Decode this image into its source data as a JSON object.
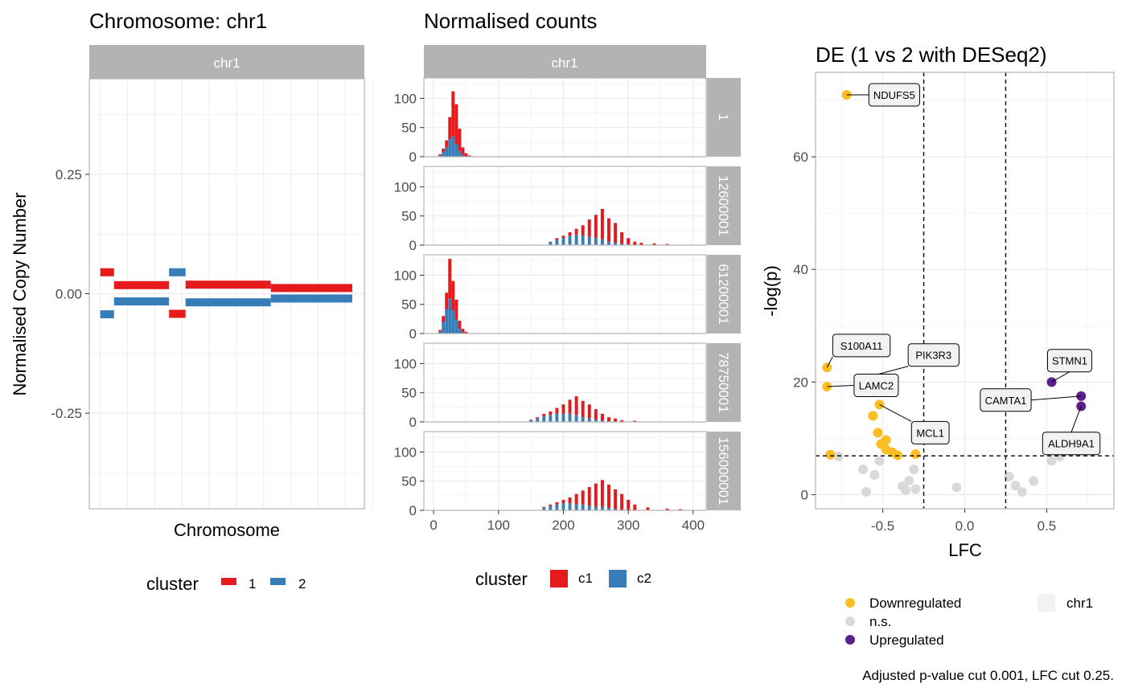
{
  "colors": {
    "cluster1": "#E41A1C",
    "cluster2": "#377EB8",
    "down": "#FBBD22",
    "ns": "#D9D9D9",
    "up": "#5B1E8A",
    "strip": "#B3B3B3",
    "grid": "#EBEBEB",
    "panel_border": "#B3B3B3"
  },
  "chart_data": [
    {
      "type": "segments",
      "title": "Chromosome: chr1",
      "facet_strip": "chr1",
      "xlabel": "Chromosome",
      "ylabel": "Normalised Copy Number",
      "ylim": [
        -0.45,
        0.45
      ],
      "y_ticks": [
        0.25,
        0.0,
        -0.25
      ],
      "y_tick_labels": [
        "0.25",
        "0.00",
        "-0.25"
      ],
      "xlim": [
        0,
        100
      ],
      "grid": true,
      "legend": {
        "title": "cluster",
        "position": "bottom",
        "entries": [
          "1",
          "2"
        ]
      },
      "series": [
        {
          "name": "1",
          "segments": [
            [
              4,
              9,
              0.045
            ],
            [
              9,
              29,
              0.018
            ],
            [
              29,
              35,
              -0.042
            ],
            [
              35,
              66,
              0.019
            ],
            [
              66,
              105,
              0.012
            ]
          ]
        },
        {
          "name": "2",
          "segments": [
            [
              4,
              9,
              -0.043
            ],
            [
              9,
              29,
              -0.016
            ],
            [
              29,
              35,
              0.045
            ],
            [
              35,
              66,
              -0.018
            ],
            [
              66,
              105,
              -0.01
            ]
          ]
        }
      ]
    },
    {
      "type": "bar",
      "subtype": "stacked-histogram-facets",
      "title": "Normalised counts",
      "facet_col_strip": "chr1",
      "xlim": [
        -15,
        420
      ],
      "x_ticks": [
        0,
        100,
        200,
        300,
        400
      ],
      "x_tick_labels": [
        "0",
        "100",
        "200",
        "300",
        "400"
      ],
      "ylim": [
        0,
        135
      ],
      "y_ticks": [
        0,
        50,
        100
      ],
      "y_tick_labels": [
        "0",
        "50",
        "100"
      ],
      "grid": true,
      "legend": {
        "title": "cluster",
        "position": "bottom",
        "entries": [
          "c1",
          "c2"
        ]
      },
      "facets": [
        {
          "strip": "1",
          "peak_x": 30,
          "peak_sd": 8,
          "count_total": 620,
          "c2_share": 0.35,
          "bars": [
            [
              10,
              4,
              2
            ],
            [
              15,
              14,
              9
            ],
            [
              20,
              28,
              16
            ],
            [
              25,
              68,
              30
            ],
            [
              30,
              112,
              35
            ],
            [
              35,
              90,
              22
            ],
            [
              40,
              48,
              10
            ],
            [
              45,
              16,
              3
            ],
            [
              50,
              6,
              0
            ],
            [
              55,
              2,
              0
            ]
          ]
        },
        {
          "strip": "12600001",
          "peak_x": 255,
          "peak_sd": 30,
          "count_total": 1000,
          "c2_share": 0.3,
          "bars": [
            [
              180,
              6,
              5
            ],
            [
              190,
              12,
              9
            ],
            [
              200,
              16,
              12
            ],
            [
              210,
              22,
              16
            ],
            [
              220,
              28,
              18
            ],
            [
              230,
              34,
              16
            ],
            [
              240,
              44,
              14
            ],
            [
              250,
              52,
              12
            ],
            [
              260,
              62,
              10
            ],
            [
              270,
              46,
              6
            ],
            [
              280,
              38,
              4
            ],
            [
              290,
              22,
              2
            ],
            [
              300,
              12,
              1
            ],
            [
              310,
              6,
              0
            ],
            [
              320,
              4,
              0
            ],
            [
              340,
              3,
              0
            ],
            [
              360,
              2,
              0
            ]
          ]
        },
        {
          "strip": "61200001",
          "peak_x": 24,
          "peak_sd": 7,
          "count_total": 560,
          "c2_share": 0.45,
          "bars": [
            [
              10,
              6,
              3
            ],
            [
              15,
              30,
              20
            ],
            [
              20,
              70,
              42
            ],
            [
              25,
              128,
              60
            ],
            [
              30,
              90,
              40
            ],
            [
              35,
              58,
              24
            ],
            [
              40,
              22,
              8
            ],
            [
              45,
              8,
              2
            ],
            [
              50,
              3,
              0
            ]
          ]
        },
        {
          "strip": "78750001",
          "peak_x": 220,
          "peak_sd": 28,
          "count_total": 900,
          "c2_share": 0.35,
          "bars": [
            [
              150,
              4,
              3
            ],
            [
              160,
              8,
              6
            ],
            [
              170,
              14,
              10
            ],
            [
              180,
              18,
              12
            ],
            [
              190,
              24,
              14
            ],
            [
              200,
              30,
              14
            ],
            [
              210,
              38,
              14
            ],
            [
              220,
              44,
              12
            ],
            [
              230,
              36,
              8
            ],
            [
              240,
              30,
              6
            ],
            [
              250,
              22,
              4
            ],
            [
              260,
              14,
              2
            ],
            [
              270,
              8,
              1
            ],
            [
              280,
              6,
              0
            ],
            [
              290,
              3,
              0
            ],
            [
              310,
              2,
              0
            ]
          ]
        },
        {
          "strip": "156000001",
          "peak_x": 265,
          "peak_sd": 30,
          "count_total": 900,
          "c2_share": 0.3,
          "bars": [
            [
              170,
              6,
              5
            ],
            [
              180,
              10,
              8
            ],
            [
              190,
              14,
              10
            ],
            [
              200,
              18,
              12
            ],
            [
              210,
              22,
              12
            ],
            [
              220,
              28,
              10
            ],
            [
              230,
              34,
              10
            ],
            [
              240,
              40,
              8
            ],
            [
              250,
              46,
              6
            ],
            [
              260,
              52,
              6
            ],
            [
              270,
              44,
              4
            ],
            [
              280,
              36,
              2
            ],
            [
              290,
              28,
              1
            ],
            [
              300,
              18,
              0
            ],
            [
              310,
              10,
              0
            ],
            [
              330,
              5,
              0
            ],
            [
              360,
              3,
              0
            ],
            [
              380,
              2,
              0
            ]
          ]
        }
      ]
    },
    {
      "type": "scatter",
      "title": "DE (1 vs 2 with DESeq2)",
      "xlabel": "LFC",
      "ylabel": "-log(p)",
      "xlim": [
        -0.91,
        0.91
      ],
      "ylim": [
        -2.5,
        75
      ],
      "x_ticks": [
        -0.5,
        0.0,
        0.5
      ],
      "x_tick_labels": [
        "-0.5",
        "0.0",
        "0.5"
      ],
      "y_ticks": [
        0,
        20,
        40,
        60
      ],
      "y_tick_labels": [
        "0",
        "20",
        "40",
        "60"
      ],
      "vlines": [
        -0.25,
        0.25
      ],
      "hline": 6.9,
      "grid": true,
      "caption": "Adjusted p-value cut 0.001, LFC cut 0.25.",
      "legend": {
        "position": "bottom",
        "entries": [
          "Downregulated",
          "n.s.",
          "Upregulated"
        ],
        "extra": "chr1"
      },
      "series": [
        {
          "name": "Downregulated",
          "points": [
            [
              -0.72,
              71.0
            ],
            [
              -0.84,
              22.6
            ],
            [
              -0.84,
              19.2
            ],
            [
              -0.63,
              20.6
            ],
            [
              -0.52,
              16.0
            ],
            [
              -0.56,
              14.0
            ],
            [
              -0.53,
              11.0
            ],
            [
              -0.51,
              9.0
            ],
            [
              -0.48,
              9.7
            ],
            [
              -0.48,
              8.0
            ],
            [
              -0.44,
              7.5
            ],
            [
              -0.41,
              7.0
            ],
            [
              -0.3,
              7.2
            ],
            [
              -0.82,
              7.1
            ]
          ]
        },
        {
          "name": "n.s.",
          "points": [
            [
              -0.77,
              6.8
            ],
            [
              -0.62,
              4.5
            ],
            [
              -0.55,
              3.5
            ],
            [
              -0.52,
              6.0
            ],
            [
              -0.6,
              0.5
            ],
            [
              -0.38,
              1.5
            ],
            [
              -0.36,
              0.8
            ],
            [
              -0.34,
              2.5
            ],
            [
              -0.31,
              4.5
            ],
            [
              -0.3,
              1.0
            ],
            [
              -0.05,
              1.3
            ],
            [
              0.27,
              3.2
            ],
            [
              0.31,
              1.6
            ],
            [
              0.35,
              0.5
            ],
            [
              0.42,
              2.4
            ],
            [
              0.53,
              6.0
            ],
            [
              0.58,
              6.8
            ]
          ]
        },
        {
          "name": "Upregulated",
          "points": [
            [
              0.53,
              20.0
            ],
            [
              0.71,
              17.5
            ],
            [
              0.71,
              15.7
            ]
          ]
        }
      ],
      "labels": [
        {
          "text": "NDUFS5",
          "point": [
            -0.72,
            71.0
          ],
          "at": [
            -0.43,
            71.0
          ]
        },
        {
          "text": "S100A11",
          "point": [
            -0.84,
            22.6
          ],
          "at": [
            -0.63,
            26.5
          ]
        },
        {
          "text": "PIK3R3",
          "point": [
            -0.63,
            20.6
          ],
          "at": [
            -0.19,
            24.8
          ]
        },
        {
          "text": "LAMC2",
          "point": [
            -0.84,
            19.2
          ],
          "at": [
            -0.54,
            19.4
          ]
        },
        {
          "text": "MCL1",
          "point": [
            -0.52,
            16.0
          ],
          "at": [
            -0.21,
            11.0
          ]
        },
        {
          "text": "STMN1",
          "point": [
            0.53,
            20.0
          ],
          "at": [
            0.64,
            23.8
          ]
        },
        {
          "text": "CAMTA1",
          "point": [
            0.71,
            17.5
          ],
          "at": [
            0.25,
            16.8
          ]
        },
        {
          "text": "ALDH9A1",
          "point": [
            0.71,
            15.7
          ],
          "at": [
            0.65,
            9.1
          ]
        }
      ]
    }
  ]
}
